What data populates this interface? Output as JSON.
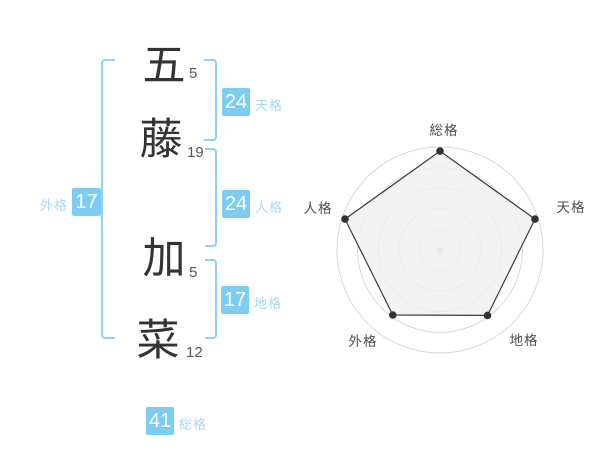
{
  "name": {
    "chars": [
      {
        "char": "五",
        "strokes": "5"
      },
      {
        "char": "藤",
        "strokes": "19"
      },
      {
        "char": "加",
        "strokes": "5"
      },
      {
        "char": "菜",
        "strokes": "12"
      }
    ]
  },
  "scores": {
    "tenkaku": {
      "label": "天格",
      "value": "24"
    },
    "jinkaku": {
      "label": "人格",
      "value": "24"
    },
    "chikaku": {
      "label": "地格",
      "value": "17"
    },
    "gaikaku": {
      "label": "外格",
      "value": "17"
    },
    "soukaku": {
      "label": "総格",
      "value": "41"
    }
  },
  "colors": {
    "score_box_bg": "#7dcdf2",
    "score_box_text": "#ffffff",
    "score_label_text": "#a9d9f2",
    "bracket": "#8fd2f4",
    "kanji": "#333333",
    "stroke_count": "#555555"
  },
  "chart_data": {
    "type": "radar",
    "axes": [
      "総格",
      "天格",
      "地格",
      "外格",
      "人格"
    ],
    "values": [
      41,
      24,
      17,
      17,
      24
    ],
    "plotted_radius_fraction": [
      0.96,
      0.97,
      0.785,
      0.78,
      0.97
    ],
    "grid_rings": 5,
    "grid_shape": "circle",
    "legend": "none",
    "colors": {
      "grid": "#d9d9d9",
      "fill": "#f0f0f0",
      "fill_opacity": 0.82,
      "stroke": "#3a3a3a",
      "point": "#333333",
      "center_dot": "#c8c8c8",
      "label": "#4f4f4f"
    }
  }
}
